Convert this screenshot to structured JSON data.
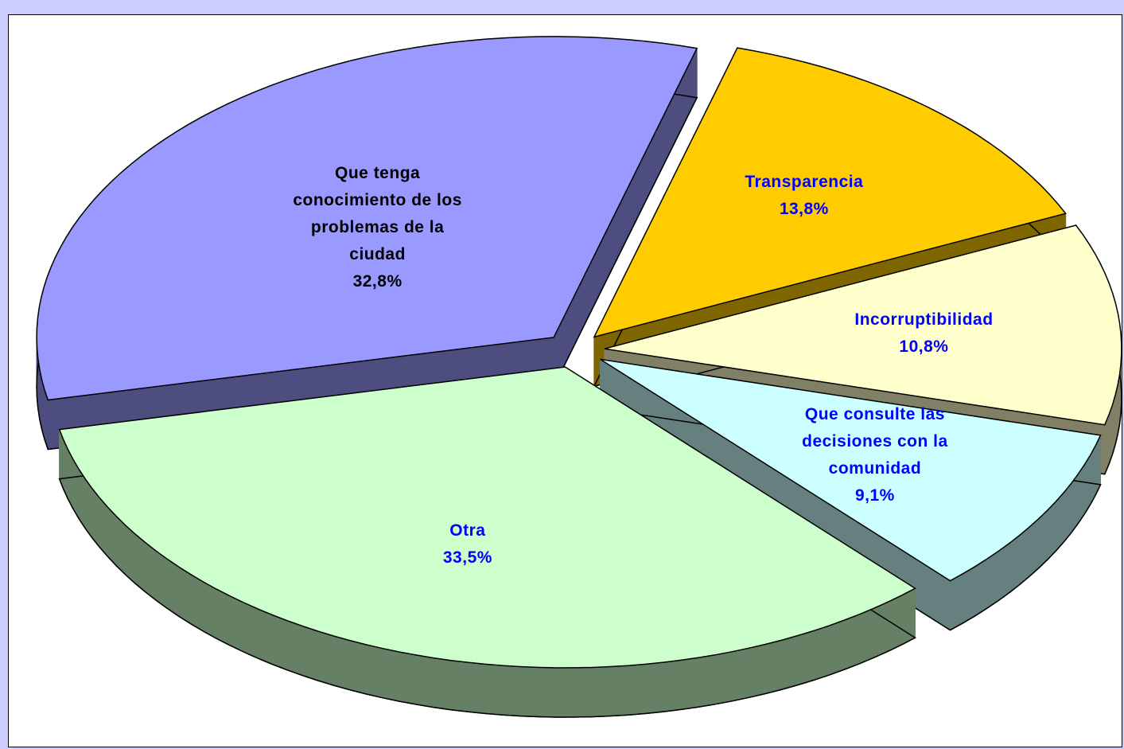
{
  "chart_data": {
    "type": "pie",
    "categories": [
      "Que tenga conocimiento de los problemas de la ciudad",
      "Transparencia",
      "Incorruptibilidad",
      "Que consulte las decisiones con la comunidad",
      "Otra"
    ],
    "values": [
      32.8,
      13.8,
      10.8,
      9.1,
      33.5
    ],
    "value_labels": [
      "32,8%",
      "13,8%",
      "10,8%",
      "9,1%",
      "33,5%"
    ],
    "colors": [
      "#9999ff",
      "#ffcc00",
      "#ffffcc",
      "#ccffff",
      "#ccffcc"
    ],
    "label_colors": [
      "#000000",
      "#0000ff",
      "#0000ff",
      "#0000ff",
      "#0000ff"
    ]
  }
}
